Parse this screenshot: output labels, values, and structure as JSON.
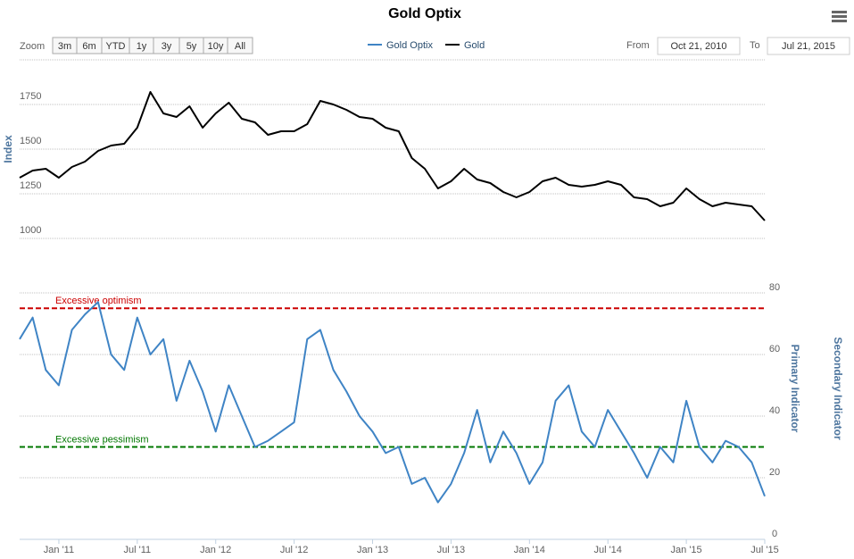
{
  "chart_data": {
    "type": "line",
    "title": "Gold Optix",
    "zoom_label": "Zoom",
    "zoom_buttons": [
      "3m",
      "6m",
      "YTD",
      "1y",
      "3y",
      "5y",
      "10y",
      "All"
    ],
    "from_label": "From",
    "from_date": "Oct 21, 2010",
    "to_label": "To",
    "to_date": "Jul 21, 2015",
    "x": [
      "2010-10",
      "2010-11",
      "2010-12",
      "2011-01",
      "2011-02",
      "2011-03",
      "2011-04",
      "2011-05",
      "2011-06",
      "2011-07",
      "2011-08",
      "2011-09",
      "2011-10",
      "2011-11",
      "2011-12",
      "2012-01",
      "2012-02",
      "2012-03",
      "2012-04",
      "2012-05",
      "2012-06",
      "2012-07",
      "2012-08",
      "2012-09",
      "2012-10",
      "2012-11",
      "2012-12",
      "2013-01",
      "2013-02",
      "2013-03",
      "2013-04",
      "2013-05",
      "2013-06",
      "2013-07",
      "2013-08",
      "2013-09",
      "2013-10",
      "2013-11",
      "2013-12",
      "2014-01",
      "2014-02",
      "2014-03",
      "2014-04",
      "2014-05",
      "2014-06",
      "2014-07",
      "2014-08",
      "2014-09",
      "2014-10",
      "2014-11",
      "2014-12",
      "2015-01",
      "2015-02",
      "2015-03",
      "2015-04",
      "2015-05",
      "2015-06",
      "2015-07"
    ],
    "xlim": [
      "2010-10",
      "2015-07"
    ],
    "xticks": [
      {
        "value": "2011-01",
        "label": "Jan '11"
      },
      {
        "value": "2011-07",
        "label": "Jul '11"
      },
      {
        "value": "2012-01",
        "label": "Jan '12"
      },
      {
        "value": "2012-07",
        "label": "Jul '12"
      },
      {
        "value": "2013-01",
        "label": "Jan '13"
      },
      {
        "value": "2013-07",
        "label": "Jul '13"
      },
      {
        "value": "2014-01",
        "label": "Jan '14"
      },
      {
        "value": "2014-07",
        "label": "Jul '14"
      },
      {
        "value": "2015-01",
        "label": "Jan '15"
      },
      {
        "value": "2015-07",
        "label": "Jul '15"
      }
    ],
    "ylim": [
      1000,
      2000
    ],
    "yticks": [
      1000,
      1250,
      1500,
      1750
    ],
    "ylabel": "Index",
    "y2lim": [
      0,
      80
    ],
    "y2ticks": [
      0,
      20,
      40,
      60,
      80
    ],
    "y2label": "Primary Indicator",
    "y3label": "Secondary Indicator",
    "grid": true,
    "series": [
      {
        "name": "Gold Optix",
        "color": "#3f84c5",
        "axis": "y2",
        "values": [
          65,
          72,
          55,
          50,
          68,
          73,
          77,
          60,
          55,
          72,
          60,
          65,
          45,
          58,
          48,
          35,
          50,
          40,
          30,
          32,
          35,
          38,
          65,
          68,
          55,
          48,
          40,
          35,
          28,
          30,
          18,
          20,
          12,
          18,
          28,
          42,
          25,
          35,
          28,
          18,
          25,
          45,
          50,
          35,
          30,
          42,
          35,
          28,
          20,
          30,
          25,
          45,
          30,
          25,
          32,
          30,
          25,
          14
        ]
      },
      {
        "name": "Gold",
        "color": "#000000",
        "values": [
          1340,
          1380,
          1390,
          1340,
          1400,
          1430,
          1490,
          1520,
          1530,
          1620,
          1820,
          1700,
          1680,
          1740,
          1620,
          1700,
          1760,
          1670,
          1650,
          1580,
          1600,
          1600,
          1640,
          1770,
          1750,
          1720,
          1680,
          1670,
          1620,
          1600,
          1450,
          1390,
          1280,
          1320,
          1390,
          1330,
          1310,
          1260,
          1230,
          1260,
          1320,
          1340,
          1300,
          1290,
          1300,
          1320,
          1300,
          1230,
          1220,
          1180,
          1200,
          1280,
          1220,
          1180,
          1200,
          1190,
          1180,
          1100
        ]
      }
    ],
    "plot_lines": [
      {
        "value": 75,
        "label": "Excessive optimism",
        "color": "#cc0000"
      },
      {
        "value": 30,
        "label": "Excessive pessimism",
        "color": "#007700"
      }
    ]
  }
}
